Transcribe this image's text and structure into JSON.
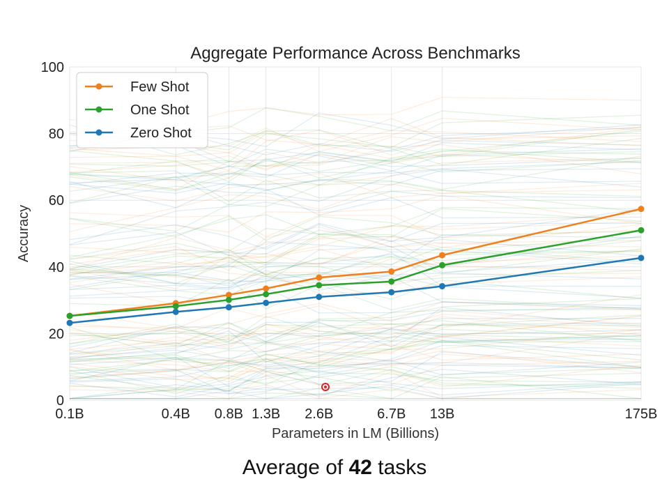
{
  "chart_data": {
    "type": "line",
    "title": "Aggregate Performance Across Benchmarks",
    "xlabel": "Parameters in LM (Billions)",
    "ylabel": "Accuracy",
    "categories": [
      "0.1B",
      "0.4B",
      "0.8B",
      "1.3B",
      "2.6B",
      "6.7B",
      "13B",
      "175B"
    ],
    "x_values": [
      0.1,
      0.4,
      0.8,
      1.3,
      2.6,
      6.7,
      13,
      175
    ],
    "ylim": [
      0,
      100
    ],
    "yticks": [
      0,
      20,
      40,
      60,
      80,
      100
    ],
    "grid": true,
    "legend_position": "top-left",
    "series": [
      {
        "name": "Few Shot",
        "color": "#f07f1e",
        "values": [
          25.3,
          29.1,
          31.6,
          33.5,
          36.8,
          38.6,
          43.5,
          57.4
        ]
      },
      {
        "name": "One Shot",
        "color": "#2ca02c",
        "values": [
          25.3,
          28.2,
          30.1,
          31.8,
          34.5,
          35.6,
          40.5,
          51.0
        ]
      },
      {
        "name": "Zero Shot",
        "color": "#1f77b4",
        "values": [
          23.2,
          26.5,
          27.9,
          29.2,
          31.0,
          32.4,
          34.2,
          42.7
        ]
      }
    ],
    "background_task_lines": 42
  },
  "caption": {
    "prefix": "Average of ",
    "count": "42",
    "suffix": " tasks"
  }
}
